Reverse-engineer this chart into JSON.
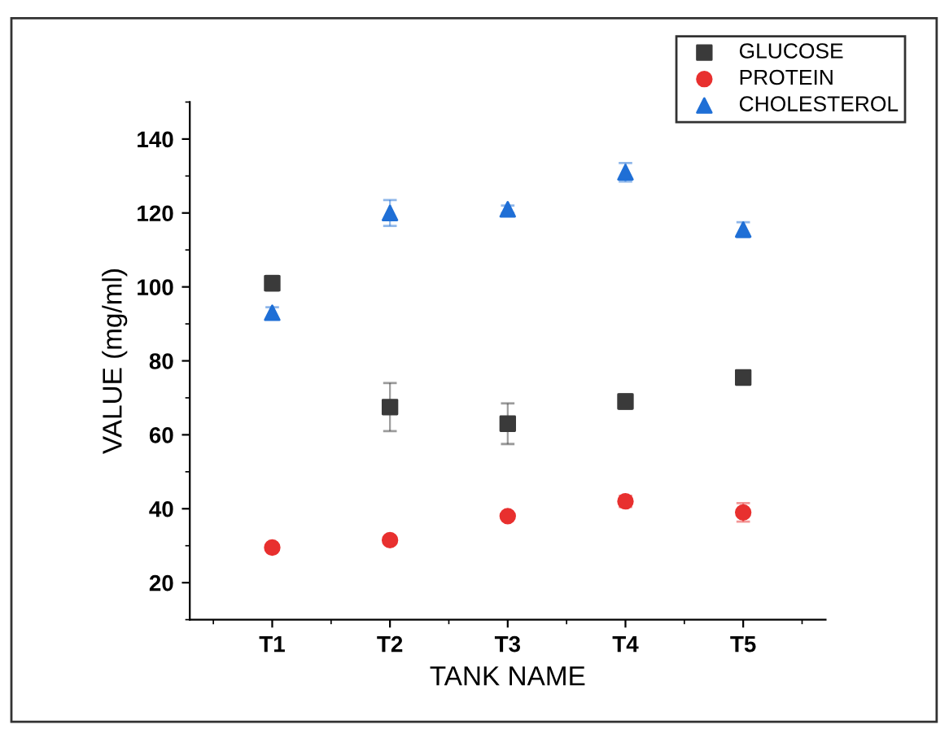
{
  "chart_data": {
    "type": "scatter",
    "xlabel": "TANK NAME",
    "ylabel": "VALUE (mg/ml)",
    "categories": [
      "T1",
      "T2",
      "T3",
      "T4",
      "T5"
    ],
    "series": [
      {
        "name": "GLUCOSE",
        "color": "#3a3a3a",
        "marker": "square",
        "values": [
          101,
          67.5,
          63,
          69,
          75.5
        ],
        "errors": [
          2,
          6.5,
          5.5,
          2,
          0.5
        ]
      },
      {
        "name": "PROTEIN",
        "color": "#e8302f",
        "marker": "circle",
        "values": [
          29.5,
          31.5,
          38,
          42,
          39
        ],
        "errors": [
          0.5,
          1,
          0.5,
          1.5,
          2.5
        ]
      },
      {
        "name": "CHOLESTEROL",
        "color": "#1f6fd6",
        "marker": "triangle",
        "values": [
          93,
          120,
          121,
          131,
          115.5
        ],
        "errors": [
          1.5,
          3.5,
          1,
          2.5,
          2
        ]
      }
    ],
    "ylim": [
      10,
      150
    ],
    "yticks": [
      20,
      40,
      60,
      80,
      100,
      120,
      140
    ],
    "grid": false,
    "legend": "top right"
  }
}
